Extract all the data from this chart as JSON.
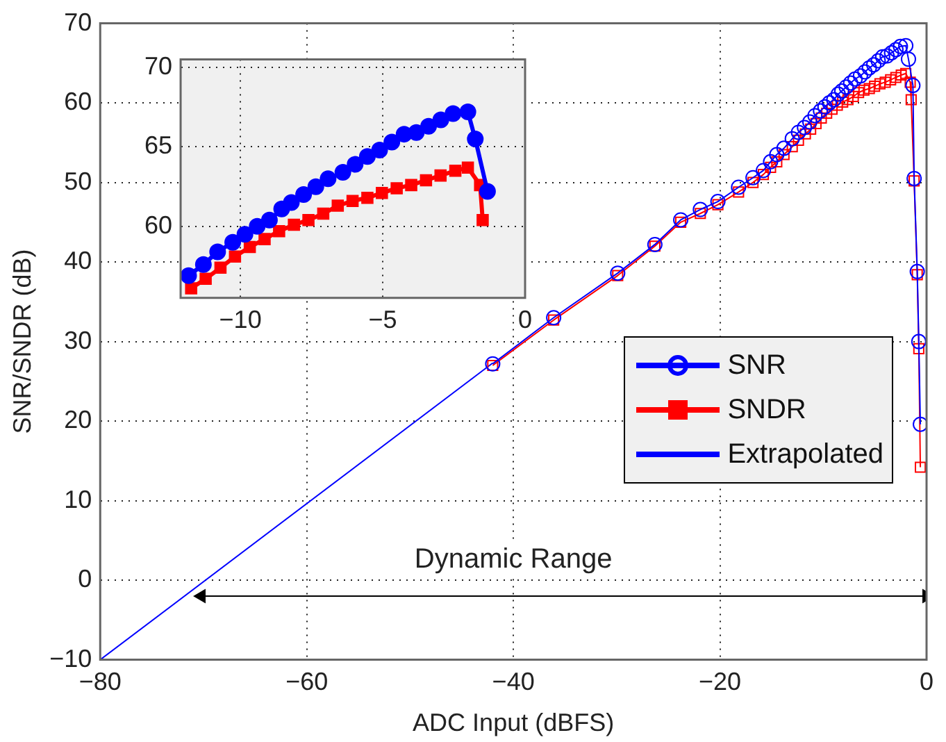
{
  "chart_data": [
    {
      "type": "line",
      "xlabel": "ADC Input (dBFS)",
      "ylabel": "SNR/SNDR (dB)",
      "xlim": [
        -80,
        0
      ],
      "xticks": [
        -80,
        -60,
        -40,
        -20,
        0
      ],
      "ylim": [
        -10,
        70
      ],
      "yticks": [
        -10,
        0,
        10,
        20,
        30,
        40,
        50,
        60,
        70
      ],
      "grid": true,
      "legend": "right",
      "annotations": [
        "Dynamic Range"
      ],
      "series": [
        {
          "name": "SNR",
          "color": "#0000ff",
          "marker": "circle",
          "x": [
            -42,
            -36.1,
            -29.9,
            -26.3,
            -23.8,
            -21.9,
            -20.2,
            -18.2,
            -16.8,
            -15.8,
            -15.1,
            -14.5,
            -13.8,
            -13,
            -12.4,
            -11.82,
            -11.3,
            -10.8,
            -10.27,
            -9.84,
            -9.41,
            -8.98,
            -8.55,
            -8.21,
            -7.78,
            -7.35,
            -6.92,
            -6.4,
            -5.97,
            -5.54,
            -5.11,
            -4.68,
            -4.25,
            -3.82,
            -3.39,
            -2.96,
            -2.53,
            -2.01,
            -1.75,
            -1.32,
            -1.2,
            -0.9,
            -0.75,
            -0.6
          ],
          "values": [
            27.2,
            33.0,
            38.6,
            42.2,
            45.3,
            46.6,
            47.6,
            49.4,
            50.6,
            51.5,
            52.6,
            53.5,
            54.3,
            55.5,
            56.3,
            56.9,
            57.6,
            58.4,
            59.0,
            59.5,
            60.0,
            60.4,
            61.1,
            61.5,
            62.0,
            62.5,
            63.0,
            63.4,
            63.9,
            64.4,
            64.8,
            65.3,
            65.8,
            65.9,
            66.3,
            66.7,
            67.1,
            67.2,
            65.5,
            62.2,
            50.5,
            38.8,
            30.0,
            19.6
          ]
        },
        {
          "name": "SNDR",
          "color": "#ff0000",
          "marker": "square",
          "x": [
            -42,
            -36.1,
            -29.9,
            -26.3,
            -23.8,
            -21.9,
            -20.2,
            -18.2,
            -16.8,
            -15.8,
            -15.1,
            -14.5,
            -13.8,
            -13,
            -12.4,
            -11.73,
            -11.22,
            -10.7,
            -10.19,
            -9.67,
            -9.15,
            -8.64,
            -8.12,
            -7.61,
            -7.09,
            -6.58,
            -6.06,
            -5.54,
            -5.03,
            -4.51,
            -4.0,
            -3.48,
            -2.97,
            -2.45,
            -2.01,
            -1.58,
            -1.49,
            -1.2,
            -0.9,
            -0.75,
            -0.6
          ],
          "values": [
            27.0,
            32.7,
            38.3,
            42.0,
            45.0,
            46.1,
            47.2,
            48.8,
            50.0,
            51.0,
            51.9,
            52.6,
            53.5,
            54.5,
            55.3,
            56.1,
            56.7,
            57.4,
            58.1,
            58.7,
            59.2,
            59.7,
            60.1,
            60.4,
            60.8,
            61.3,
            61.6,
            61.8,
            62.1,
            62.4,
            62.6,
            62.9,
            63.2,
            63.5,
            63.7,
            62.6,
            60.4,
            50.2,
            38.4,
            29.1,
            14.2
          ]
        },
        {
          "name": "Extrapolated",
          "color": "#0000ff",
          "marker": "none",
          "x": [
            -80,
            -42
          ],
          "values": [
            -10,
            27.3
          ]
        },
        {
          "color": "#000000",
          "marker": "triangle",
          "x": [
            -70.2,
            0
          ],
          "values": [
            -2,
            -2
          ]
        }
      ]
    },
    {
      "type": "line",
      "xlim": [
        -12.1,
        0
      ],
      "xticks": [
        -10,
        -5,
        0
      ],
      "ylim": [
        55.5,
        70.5
      ],
      "yticks": [
        60,
        65,
        70
      ],
      "grid": true,
      "series": [
        {
          "color": "#0000ff",
          "marker": "circle",
          "x": [
            -11.82,
            -11.3,
            -10.8,
            -10.27,
            -9.84,
            -9.41,
            -8.98,
            -8.55,
            -8.21,
            -7.78,
            -7.35,
            -6.92,
            -6.4,
            -5.97,
            -5.54,
            -5.11,
            -4.68,
            -4.25,
            -3.82,
            -3.39,
            -2.96,
            -2.53,
            -2.01,
            -1.75,
            -1.32
          ],
          "values": [
            56.9,
            57.6,
            58.4,
            59.0,
            59.5,
            60.0,
            60.4,
            61.1,
            61.5,
            62.0,
            62.5,
            63.0,
            63.4,
            63.9,
            64.4,
            64.8,
            65.3,
            65.8,
            65.9,
            66.3,
            66.7,
            67.1,
            67.2,
            65.5,
            62.2
          ]
        },
        {
          "color": "#ff0000",
          "marker": "square",
          "x": [
            -11.73,
            -11.22,
            -10.7,
            -10.19,
            -9.67,
            -9.15,
            -8.64,
            -8.12,
            -7.61,
            -7.09,
            -6.58,
            -6.06,
            -5.54,
            -5.03,
            -4.51,
            -4.0,
            -3.48,
            -2.97,
            -2.45,
            -2.01,
            -1.58,
            -1.49
          ],
          "values": [
            56.1,
            56.7,
            57.4,
            58.1,
            58.7,
            59.2,
            59.7,
            60.1,
            60.4,
            60.8,
            61.3,
            61.6,
            61.8,
            62.1,
            62.4,
            62.6,
            62.9,
            63.2,
            63.5,
            63.7,
            62.6,
            60.4
          ]
        }
      ]
    }
  ]
}
